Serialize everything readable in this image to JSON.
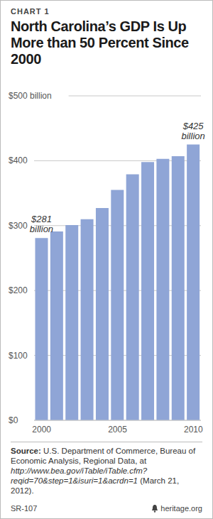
{
  "chart_data": {
    "type": "bar",
    "chart_number": "CHART 1",
    "title": "North Carolina’s GDP Is Up More than 50 Percent Since 2000",
    "categories": [
      "2000",
      null,
      null,
      null,
      null,
      "2005",
      null,
      null,
      null,
      null,
      "2010"
    ],
    "values": [
      281,
      291,
      301,
      310,
      327,
      355,
      379,
      398,
      403,
      407,
      425
    ],
    "value_labels": [
      "$281 billion",
      null,
      null,
      null,
      null,
      null,
      null,
      null,
      null,
      null,
      "$425 billion"
    ],
    "data_labels": true,
    "color": "#8fa5d6",
    "ylim": [
      0,
      500
    ],
    "yticks": [
      {
        "value": 0,
        "label": "$0"
      },
      {
        "value": 100,
        "label": "$100"
      },
      {
        "value": 200,
        "label": "$200"
      },
      {
        "value": 300,
        "label": "$300"
      },
      {
        "value": 400,
        "label": "$400"
      },
      {
        "value": 500,
        "label": "$500 billion"
      }
    ],
    "grid": true,
    "source_label": "Source:",
    "source": "U.S. Department of Commerce, Bureau of Economic Analysis, Regional Data, at",
    "source_url": "http://www.bea.gov/iTable/iTable.cfm?reqid=70&step=1&isuri=1&acrdn=1",
    "source_date": "(March 21, 2012).",
    "report_number": "SR-107",
    "publisher": "heritage.org"
  }
}
